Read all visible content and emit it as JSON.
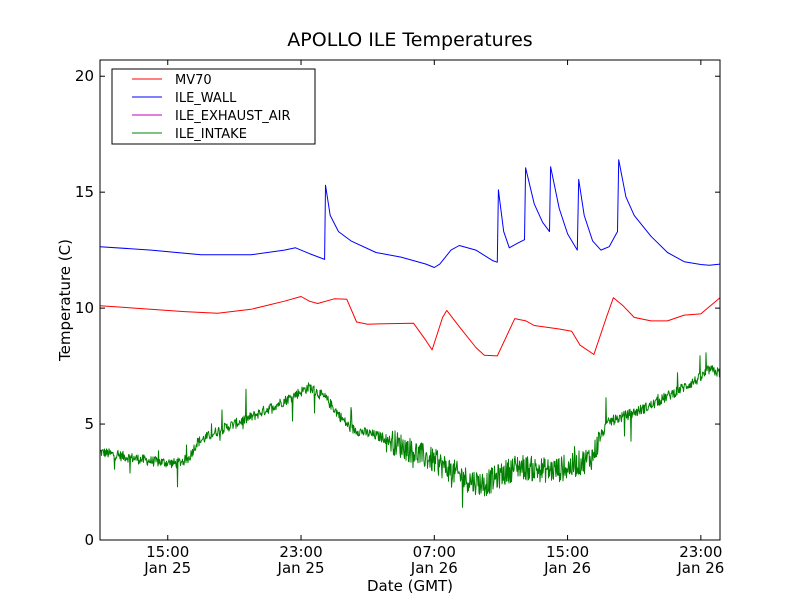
{
  "chart_data": {
    "type": "line",
    "title": "APOLLO ILE Temperatures",
    "xlabel": "Date (GMT)",
    "ylabel": "Temperature (C)",
    "xlim": [
      "2025-01-25 10:56",
      "2025-01-27 00:09"
    ],
    "ylim": [
      0,
      20.7
    ],
    "yticks": [
      0,
      5,
      10,
      15,
      20
    ],
    "xticks": [
      {
        "value": "2025-01-25 15:00",
        "time": "15:00",
        "date": "Jan 25"
      },
      {
        "value": "2025-01-25 23:00",
        "time": "23:00",
        "date": "Jan 25"
      },
      {
        "value": "2025-01-26 07:00",
        "time": "07:00",
        "date": "Jan 26"
      },
      {
        "value": "2025-01-26 15:00",
        "time": "15:00",
        "date": "Jan 26"
      },
      {
        "value": "2025-01-26 23:00",
        "time": "23:00",
        "date": "Jan 26"
      }
    ],
    "grid": false,
    "legend": "top-left",
    "series": [
      {
        "name": "MV70",
        "color": "#ff0000",
        "points": [
          [
            "2025-01-25 10:56",
            10.1
          ],
          [
            "2025-01-25 13:00",
            10.0
          ],
          [
            "2025-01-25 16:00",
            9.85
          ],
          [
            "2025-01-25 18:00",
            9.78
          ],
          [
            "2025-01-25 20:00",
            9.95
          ],
          [
            "2025-01-25 22:00",
            10.3
          ],
          [
            "2025-01-25 23:00",
            10.5
          ],
          [
            "2025-01-25 23:30",
            10.3
          ],
          [
            "2025-01-26 00:00",
            10.2
          ],
          [
            "2025-01-26 01:00",
            10.4
          ],
          [
            "2025-01-26 01:45",
            10.38
          ],
          [
            "2025-01-26 02:20",
            9.4
          ],
          [
            "2025-01-26 03:00",
            9.3
          ],
          [
            "2025-01-26 04:00",
            9.33
          ],
          [
            "2025-01-26 05:45",
            9.35
          ],
          [
            "2025-01-26 06:30",
            8.6
          ],
          [
            "2025-01-26 06:52",
            8.2
          ],
          [
            "2025-01-26 07:30",
            9.6
          ],
          [
            "2025-01-26 07:45",
            9.9
          ],
          [
            "2025-01-26 08:30",
            9.2
          ],
          [
            "2025-01-26 09:30",
            8.3
          ],
          [
            "2025-01-26 10:00",
            7.97
          ],
          [
            "2025-01-26 10:47",
            7.94
          ],
          [
            "2025-01-26 11:50",
            9.55
          ],
          [
            "2025-01-26 12:30",
            9.45
          ],
          [
            "2025-01-26 13:00",
            9.25
          ],
          [
            "2025-01-26 14:30",
            9.1
          ],
          [
            "2025-01-26 15:15",
            9.0
          ],
          [
            "2025-01-26 15:45",
            8.4
          ],
          [
            "2025-01-26 16:35",
            8.0
          ],
          [
            "2025-01-26 17:20",
            9.6
          ],
          [
            "2025-01-26 17:45",
            10.45
          ],
          [
            "2025-01-26 18:20",
            10.1
          ],
          [
            "2025-01-26 19:00",
            9.6
          ],
          [
            "2025-01-26 20:00",
            9.45
          ],
          [
            "2025-01-26 21:00",
            9.45
          ],
          [
            "2025-01-26 22:00",
            9.7
          ],
          [
            "2025-01-26 23:00",
            9.75
          ],
          [
            "2025-01-27 00:09",
            10.45
          ]
        ]
      },
      {
        "name": "ILE_WALL",
        "color": "#0000ff",
        "points": [
          [
            "2025-01-25 10:56",
            12.65
          ],
          [
            "2025-01-25 14:00",
            12.5
          ],
          [
            "2025-01-25 17:00",
            12.3
          ],
          [
            "2025-01-25 20:00",
            12.3
          ],
          [
            "2025-01-25 22:00",
            12.5
          ],
          [
            "2025-01-25 22:40",
            12.6
          ],
          [
            "2025-01-25 23:30",
            12.35
          ],
          [
            "2025-01-26 00:25",
            12.1
          ],
          [
            "2025-01-26 00:28",
            15.3
          ],
          [
            "2025-01-26 00:45",
            14.0
          ],
          [
            "2025-01-26 01:15",
            13.3
          ],
          [
            "2025-01-26 02:00",
            12.9
          ],
          [
            "2025-01-26 03:30",
            12.4
          ],
          [
            "2025-01-26 05:00",
            12.2
          ],
          [
            "2025-01-26 06:30",
            11.9
          ],
          [
            "2025-01-26 07:00",
            11.75
          ],
          [
            "2025-01-26 07:20",
            11.9
          ],
          [
            "2025-01-26 08:00",
            12.5
          ],
          [
            "2025-01-26 08:30",
            12.7
          ],
          [
            "2025-01-26 09:30",
            12.5
          ],
          [
            "2025-01-26 10:30",
            12.05
          ],
          [
            "2025-01-26 10:47",
            11.98
          ],
          [
            "2025-01-26 10:51",
            15.1
          ],
          [
            "2025-01-26 11:10",
            13.3
          ],
          [
            "2025-01-26 11:30",
            12.6
          ],
          [
            "2025-01-26 12:00",
            12.8
          ],
          [
            "2025-01-26 12:25",
            12.95
          ],
          [
            "2025-01-26 12:29",
            16.05
          ],
          [
            "2025-01-26 13:00",
            14.5
          ],
          [
            "2025-01-26 13:30",
            13.7
          ],
          [
            "2025-01-26 13:55",
            13.3
          ],
          [
            "2025-01-26 13:59",
            16.1
          ],
          [
            "2025-01-26 14:30",
            14.3
          ],
          [
            "2025-01-26 15:00",
            13.2
          ],
          [
            "2025-01-26 15:35",
            12.5
          ],
          [
            "2025-01-26 15:40",
            15.55
          ],
          [
            "2025-01-26 16:00",
            14.0
          ],
          [
            "2025-01-26 16:30",
            12.9
          ],
          [
            "2025-01-26 17:00",
            12.5
          ],
          [
            "2025-01-26 17:30",
            12.65
          ],
          [
            "2025-01-26 17:55",
            13.2
          ],
          [
            "2025-01-26 18:00",
            13.3
          ],
          [
            "2025-01-26 18:04",
            16.4
          ],
          [
            "2025-01-26 18:30",
            14.8
          ],
          [
            "2025-01-26 19:00",
            14.0
          ],
          [
            "2025-01-26 20:00",
            13.1
          ],
          [
            "2025-01-26 21:00",
            12.4
          ],
          [
            "2025-01-26 22:00",
            12.0
          ],
          [
            "2025-01-26 23:00",
            11.88
          ],
          [
            "2025-01-26 23:30",
            11.85
          ],
          [
            "2025-01-27 00:09",
            11.9
          ]
        ]
      },
      {
        "name": "ILE_EXHAUST_AIR",
        "color": "#bf00bf",
        "points": []
      },
      {
        "name": "ILE_INTAKE",
        "color": "#008000",
        "noisy": true,
        "points": [
          [
            "2025-01-25 10:56",
            3.8
          ],
          [
            "2025-01-25 12:00",
            3.65
          ],
          [
            "2025-01-25 14:00",
            3.4
          ],
          [
            "2025-01-25 15:30",
            3.3
          ],
          [
            "2025-01-25 16:15",
            3.5
          ],
          [
            "2025-01-25 16:45",
            4.2
          ],
          [
            "2025-01-25 18:00",
            4.7
          ],
          [
            "2025-01-25 20:00",
            5.3
          ],
          [
            "2025-01-25 22:00",
            6.0
          ],
          [
            "2025-01-25 23:00",
            6.4
          ],
          [
            "2025-01-25 23:30",
            6.6
          ],
          [
            "2025-01-26 00:30",
            6.1
          ],
          [
            "2025-01-26 01:30",
            5.2
          ],
          [
            "2025-01-26 02:00",
            4.8
          ],
          [
            "2025-01-26 04:00",
            4.4
          ],
          [
            "2025-01-26 05:30",
            3.9
          ],
          [
            "2025-01-26 07:00",
            3.4
          ],
          [
            "2025-01-26 08:00",
            3.0
          ],
          [
            "2025-01-26 09:00",
            2.6
          ],
          [
            "2025-01-26 10:00",
            2.4
          ],
          [
            "2025-01-26 11:00",
            2.8
          ],
          [
            "2025-01-26 12:00",
            3.2
          ],
          [
            "2025-01-26 13:00",
            3.05
          ],
          [
            "2025-01-26 14:00",
            3.0
          ],
          [
            "2025-01-26 15:00",
            3.1
          ],
          [
            "2025-01-26 16:00",
            3.4
          ],
          [
            "2025-01-26 16:30",
            3.6
          ],
          [
            "2025-01-26 17:00",
            4.5
          ],
          [
            "2025-01-26 17:30",
            5.1
          ],
          [
            "2025-01-26 19:00",
            5.5
          ],
          [
            "2025-01-26 20:00",
            5.8
          ],
          [
            "2025-01-26 21:00",
            6.2
          ],
          [
            "2025-01-26 22:00",
            6.6
          ],
          [
            "2025-01-26 23:00",
            7.0
          ],
          [
            "2025-01-26 23:30",
            7.35
          ],
          [
            "2025-01-27 00:09",
            7.2
          ]
        ]
      }
    ]
  }
}
